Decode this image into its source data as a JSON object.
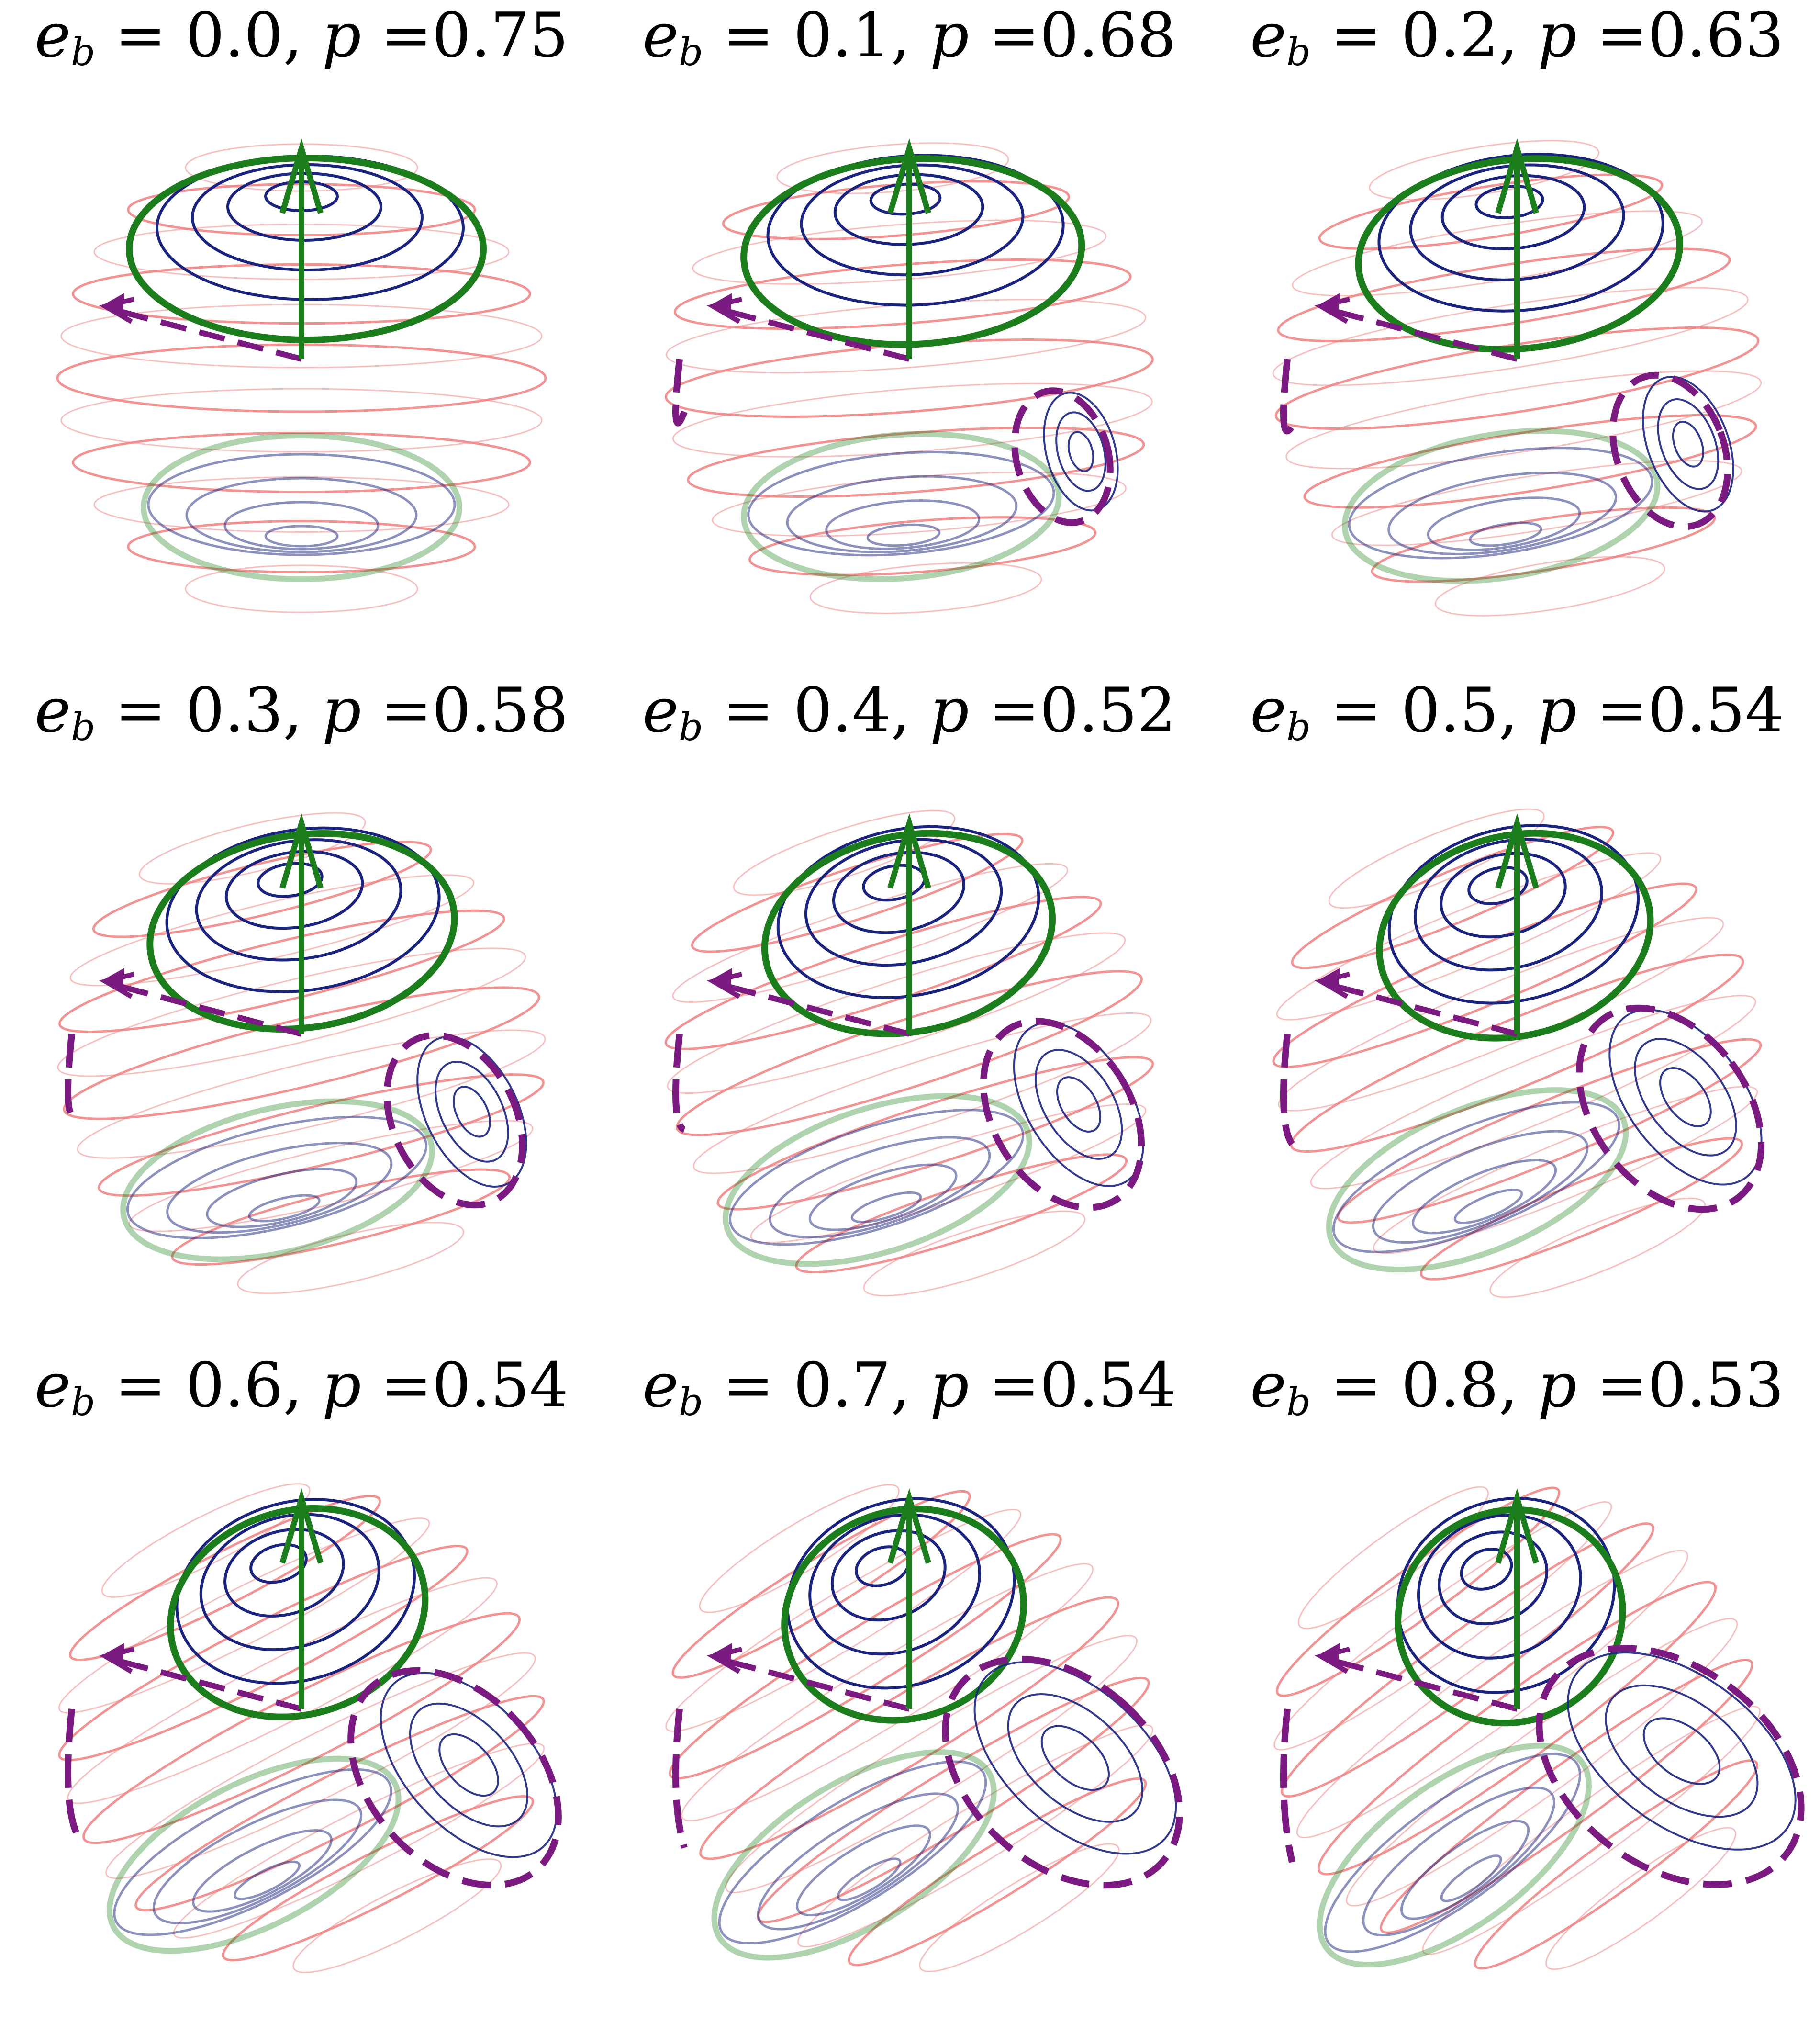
{
  "figure": {
    "panels": [
      {
        "eb": "0.0",
        "p": "0.75",
        "tilt": 0.0
      },
      {
        "eb": "0.1",
        "p": "0.68",
        "tilt": 0.1
      },
      {
        "eb": "0.2",
        "p": "0.63",
        "tilt": 0.2
      },
      {
        "eb": "0.3",
        "p": "0.58",
        "tilt": 0.3
      },
      {
        "eb": "0.4",
        "p": "0.52",
        "tilt": 0.4
      },
      {
        "eb": "0.5",
        "p": "0.54",
        "tilt": 0.5
      },
      {
        "eb": "0.6",
        "p": "0.54",
        "tilt": 0.6
      },
      {
        "eb": "0.7",
        "p": "0.54",
        "tilt": 0.7
      },
      {
        "eb": "0.8",
        "p": "0.53",
        "tilt": 0.8
      }
    ],
    "colors": {
      "latitude_lines": "#f08080",
      "level_curves": "#1a237e",
      "separatrix": "#1b7d1b",
      "dashed_orbit": "#7b1a80",
      "arrow": "#1b7d1b",
      "arrow_dashed": "#7b1a80"
    },
    "symbols": {
      "e": "e",
      "b": "b",
      "p": "p",
      "eq": " = ",
      "comma": ", "
    }
  }
}
